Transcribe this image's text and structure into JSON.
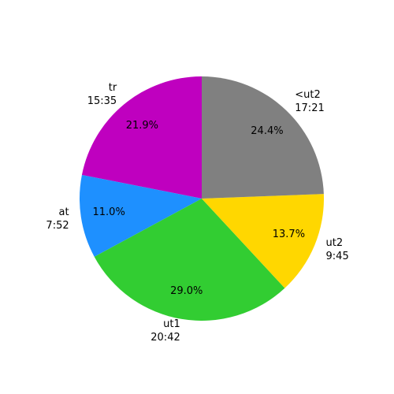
{
  "chart_data": {
    "type": "pie",
    "categories": [
      "tr\n15:35",
      "at\n7:52",
      "ut1\n20:42",
      "ut2\n9:45",
      "<ut2\n17:21"
    ],
    "values": [
      21.9,
      11.0,
      29.0,
      13.7,
      24.4
    ],
    "value_labels": [
      "21.9%",
      "11.0%",
      "29.0%",
      "13.7%",
      "24.4%"
    ],
    "colors": [
      "#bf00bf",
      "#1e90ff",
      "#32cd32",
      "#ffd700",
      "#808080"
    ],
    "start_angle": 90,
    "counterclockwise": true
  }
}
